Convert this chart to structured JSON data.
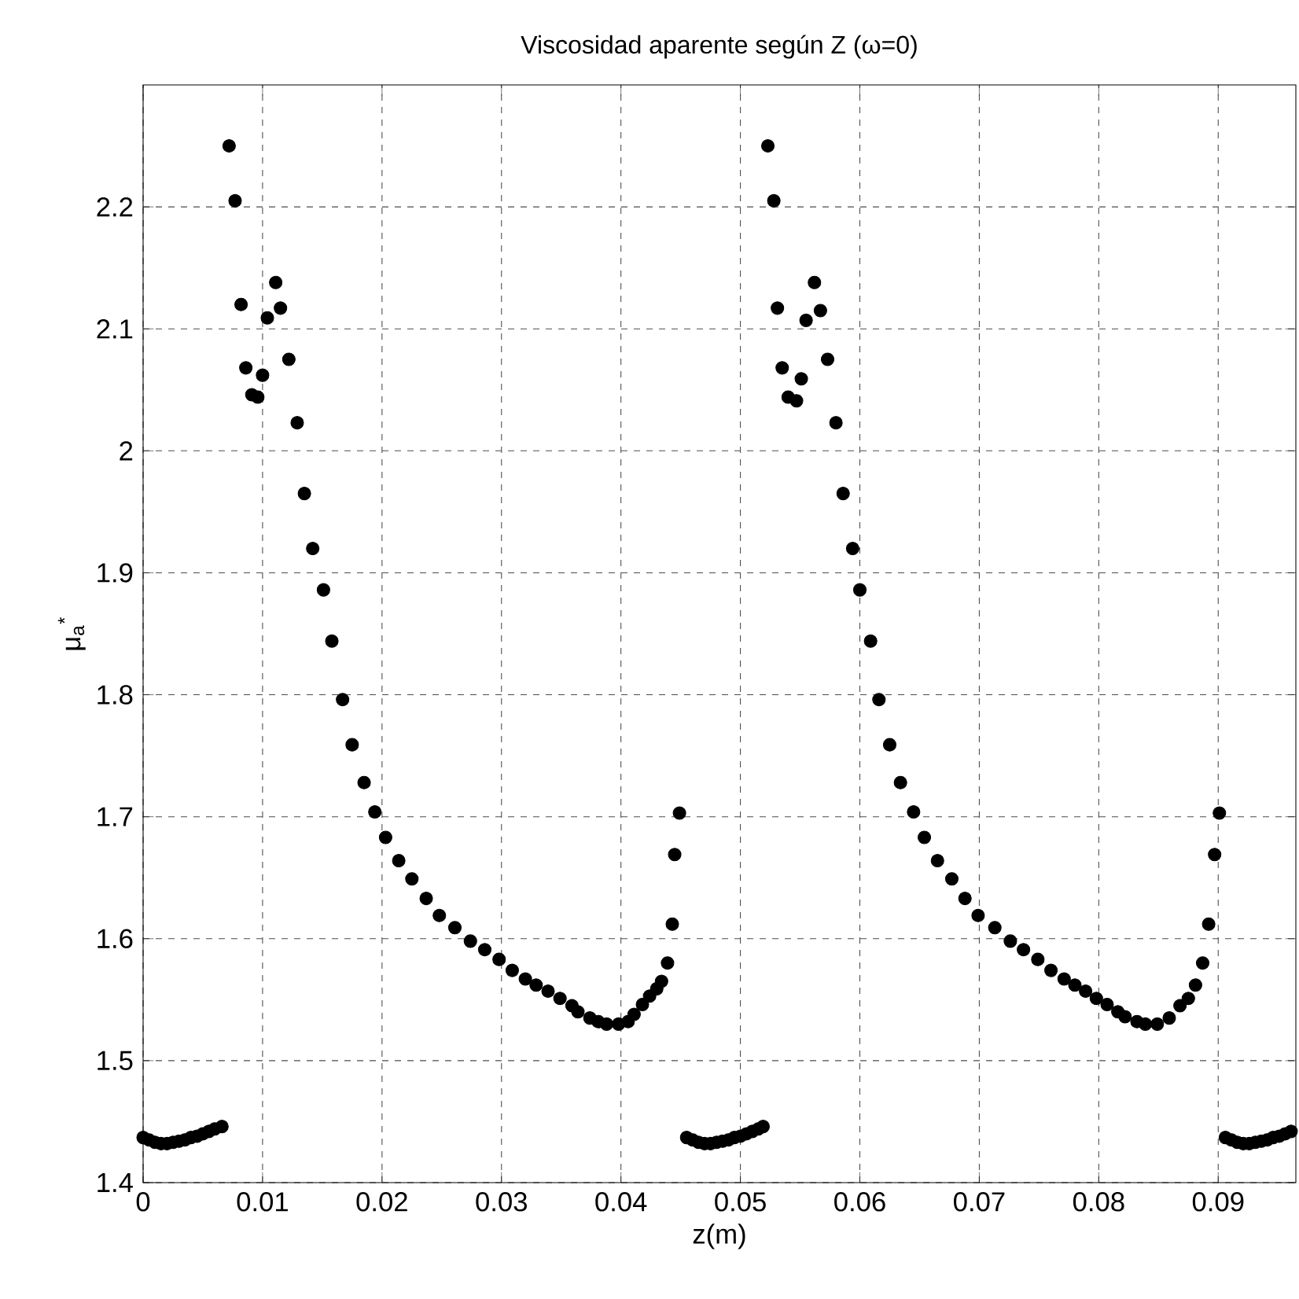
{
  "chart_data": {
    "type": "scatter",
    "title": "Viscosidad aparente según Z (ω=0)",
    "xlabel": "z(m)",
    "ylabel": "μ$_{a}$$^{*}$",
    "xlim": [
      0,
      0.0965
    ],
    "ylim": [
      1.4,
      2.3
    ],
    "xticks": [
      0,
      0.01,
      0.02,
      0.03,
      0.04,
      0.05,
      0.06,
      0.07,
      0.08,
      0.09
    ],
    "yticks": [
      1.4,
      1.5,
      1.6,
      1.7,
      1.8,
      1.9,
      2,
      2.1,
      2.2
    ],
    "grid": true,
    "marker": "circle",
    "color": "#000000",
    "x": [
      0,
      0.0005,
      0.001,
      0.0015,
      0.002,
      0.0025,
      0.003,
      0.0035,
      0.004,
      0.0045,
      0.005,
      0.0055,
      0.006,
      0.0066,
      0.0072,
      0.0077,
      0.0082,
      0.0086,
      0.0091,
      0.0096,
      0.01,
      0.0104,
      0.0111,
      0.0115,
      0.0122,
      0.0129,
      0.0135,
      0.0142,
      0.0151,
      0.0158,
      0.0167,
      0.0175,
      0.0185,
      0.0194,
      0.0203,
      0.0214,
      0.0225,
      0.0237,
      0.0248,
      0.0261,
      0.0274,
      0.0286,
      0.0298,
      0.0309,
      0.032,
      0.0329,
      0.0339,
      0.0349,
      0.0359,
      0.0364,
      0.0374,
      0.0381,
      0.0388,
      0.0398,
      0.0406,
      0.0411,
      0.0418,
      0.0424,
      0.043,
      0.0434,
      0.0439,
      0.0443,
      0.0445,
      0.0449,
      0.0455,
      0.046,
      0.0465,
      0.047,
      0.0475,
      0.048,
      0.0485,
      0.049,
      0.0495,
      0.05,
      0.0505,
      0.051,
      0.0515,
      0.0519,
      0.0523,
      0.0528,
      0.0531,
      0.0535,
      0.054,
      0.0547,
      0.0551,
      0.0555,
      0.0562,
      0.0567,
      0.0573,
      0.058,
      0.0586,
      0.0594,
      0.06,
      0.0609,
      0.0616,
      0.0625,
      0.0634,
      0.0645,
      0.0654,
      0.0665,
      0.0677,
      0.0688,
      0.0699,
      0.0713,
      0.0726,
      0.0737,
      0.0749,
      0.076,
      0.0771,
      0.078,
      0.0789,
      0.0798,
      0.0807,
      0.0816,
      0.0822,
      0.0832,
      0.0839,
      0.0849,
      0.0859,
      0.0868,
      0.0875,
      0.0881,
      0.0887,
      0.0892,
      0.0897,
      0.0901,
      0.0906,
      0.0911,
      0.0916,
      0.0921,
      0.0926,
      0.0931,
      0.0936,
      0.0941,
      0.0946,
      0.0951,
      0.0956,
      0.0961
    ],
    "values": [
      1.437,
      1.435,
      1.433,
      1.432,
      1.432,
      1.433,
      1.434,
      1.435,
      1.437,
      1.438,
      1.44,
      1.442,
      1.444,
      1.446,
      2.25,
      2.205,
      2.12,
      2.068,
      2.046,
      2.044,
      2.062,
      2.109,
      2.138,
      2.117,
      2.075,
      2.023,
      1.965,
      1.92,
      1.886,
      1.844,
      1.796,
      1.759,
      1.728,
      1.704,
      1.683,
      1.664,
      1.649,
      1.633,
      1.619,
      1.609,
      1.598,
      1.591,
      1.583,
      1.574,
      1.567,
      1.562,
      1.557,
      1.551,
      1.545,
      1.54,
      1.535,
      1.532,
      1.53,
      1.53,
      1.532,
      1.538,
      1.546,
      1.553,
      1.559,
      1.565,
      1.58,
      1.612,
      1.669,
      1.703,
      1.437,
      1.435,
      1.433,
      1.432,
      1.432,
      1.433,
      1.434,
      1.435,
      1.437,
      1.438,
      1.44,
      1.442,
      1.444,
      1.446,
      2.25,
      2.205,
      2.117,
      2.068,
      2.044,
      2.041,
      2.059,
      2.107,
      2.138,
      2.115,
      2.075,
      2.023,
      1.965,
      1.92,
      1.886,
      1.844,
      1.796,
      1.759,
      1.728,
      1.704,
      1.683,
      1.664,
      1.649,
      1.633,
      1.619,
      1.609,
      1.598,
      1.591,
      1.583,
      1.574,
      1.567,
      1.562,
      1.557,
      1.551,
      1.546,
      1.54,
      1.536,
      1.532,
      1.53,
      1.53,
      1.535,
      1.545,
      1.551,
      1.562,
      1.58,
      1.612,
      1.669,
      1.703,
      1.437,
      1.435,
      1.433,
      1.432,
      1.432,
      1.433,
      1.434,
      1.435,
      1.437,
      1.438,
      1.44,
      1.442
    ]
  }
}
